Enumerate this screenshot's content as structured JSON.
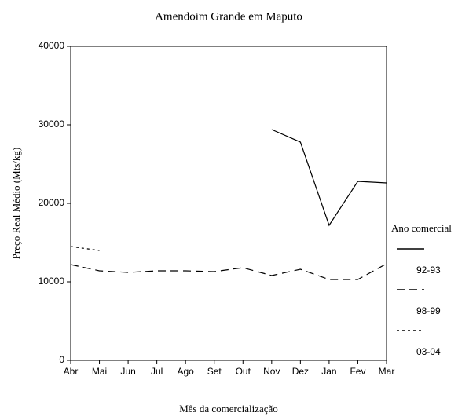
{
  "chart_data": {
    "type": "line",
    "title": "Amendoim Grande em Maputo",
    "x_label": "Mês da comercialização",
    "y_label": "Preço Real Médio (Mts/kg)",
    "legend_title": "Ano comercial",
    "categories": [
      "Abr",
      "Mai",
      "Jun",
      "Jul",
      "Ago",
      "Set",
      "Out",
      "Nov",
      "Dez",
      "Jan",
      "Fev",
      "Mar"
    ],
    "series": [
      {
        "name": "92-93",
        "color": "#000000",
        "dash": "none",
        "values": [
          null,
          null,
          null,
          null,
          null,
          null,
          null,
          29400,
          27800,
          17200,
          22800,
          22600
        ]
      },
      {
        "name": "98-99",
        "color": "#000000",
        "dash": "10,6",
        "values": [
          12200,
          11400,
          11200,
          11400,
          11400,
          11300,
          11800,
          10800,
          11600,
          10300,
          10300,
          12300
        ]
      },
      {
        "name": "03-04",
        "color": "#000000",
        "dash": "3,4",
        "values": [
          14500,
          14000,
          null,
          null,
          null,
          null,
          null,
          null,
          null,
          null,
          null,
          null
        ]
      }
    ],
    "ylim": [
      0,
      40000
    ],
    "yticks": [
      0,
      10000,
      20000,
      30000,
      40000
    ],
    "legend": "right"
  }
}
